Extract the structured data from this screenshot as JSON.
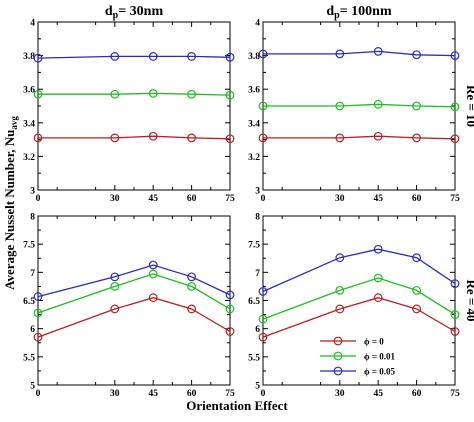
{
  "chart_data": {
    "type": "line",
    "xlabel": "Orientation Effect",
    "ylabel": "Average Nusselt Number, Nu",
    "ylabel_subscript": "avg",
    "x": [
      0,
      30,
      45,
      60,
      75
    ],
    "xticks": [
      "0",
      "30",
      "45",
      "60",
      "75"
    ],
    "series_names": [
      "ϕ = 0",
      "ϕ = 0.01",
      "ϕ = 0.05"
    ],
    "series_colors": [
      "#b22222",
      "#22bb22",
      "#2b2bb8"
    ],
    "legend_position": "bottom-center of lower-right panel",
    "grid": false,
    "columns": [
      {
        "title_main": "d",
        "title_sub": "p",
        "title_rest": "= 30nm"
      },
      {
        "title_main": "d",
        "title_sub": "p",
        "title_rest": "= 100nm"
      }
    ],
    "row_labels": [
      "Re = 10",
      "Re = 40"
    ],
    "panels": [
      {
        "row": 0,
        "col": 0,
        "ylim": [
          3,
          4
        ],
        "yticks": [
          "3",
          "3.2",
          "3.4",
          "3.6",
          "3.8",
          "4"
        ],
        "series": [
          {
            "name": "ϕ = 0",
            "values": [
              3.31,
              3.31,
              3.32,
              3.31,
              3.305
            ]
          },
          {
            "name": "ϕ = 0.01",
            "values": [
              3.57,
              3.57,
              3.575,
              3.57,
              3.565
            ]
          },
          {
            "name": "ϕ = 0.05",
            "values": [
              3.785,
              3.795,
              3.795,
              3.795,
              3.79
            ]
          }
        ]
      },
      {
        "row": 0,
        "col": 1,
        "ylim": [
          3,
          4
        ],
        "yticks": [
          "3",
          "3.2",
          "3.4",
          "3.6",
          "3.8",
          "4"
        ],
        "series": [
          {
            "name": "ϕ = 0",
            "values": [
              3.31,
              3.31,
              3.32,
              3.31,
              3.305
            ]
          },
          {
            "name": "ϕ = 0.01",
            "values": [
              3.5,
              3.5,
              3.51,
              3.5,
              3.495
            ]
          },
          {
            "name": "ϕ = 0.05",
            "values": [
              3.81,
              3.81,
              3.825,
              3.805,
              3.8
            ]
          }
        ]
      },
      {
        "row": 1,
        "col": 0,
        "ylim": [
          5,
          8
        ],
        "yticks": [
          "5",
          "5.5",
          "6",
          "6.5",
          "7",
          "7.5",
          "8"
        ],
        "series": [
          {
            "name": "ϕ = 0",
            "values": [
              5.85,
              6.35,
              6.55,
              6.35,
              5.95
            ]
          },
          {
            "name": "ϕ = 0.01",
            "values": [
              6.28,
              6.75,
              6.97,
              6.75,
              6.35
            ]
          },
          {
            "name": "ϕ = 0.05",
            "values": [
              6.57,
              6.92,
              7.13,
              6.92,
              6.6
            ]
          }
        ]
      },
      {
        "row": 1,
        "col": 1,
        "ylim": [
          5,
          8
        ],
        "yticks": [
          "5",
          "5.5",
          "6",
          "6.5",
          "7",
          "7.5",
          "8"
        ],
        "series": [
          {
            "name": "ϕ = 0",
            "values": [
              5.85,
              6.35,
              6.55,
              6.35,
              5.95
            ]
          },
          {
            "name": "ϕ = 0.01",
            "values": [
              6.17,
              6.68,
              6.9,
              6.68,
              6.25
            ]
          },
          {
            "name": "ϕ = 0.05",
            "values": [
              6.66,
              7.26,
              7.41,
              7.26,
              6.8
            ]
          }
        ]
      }
    ]
  }
}
